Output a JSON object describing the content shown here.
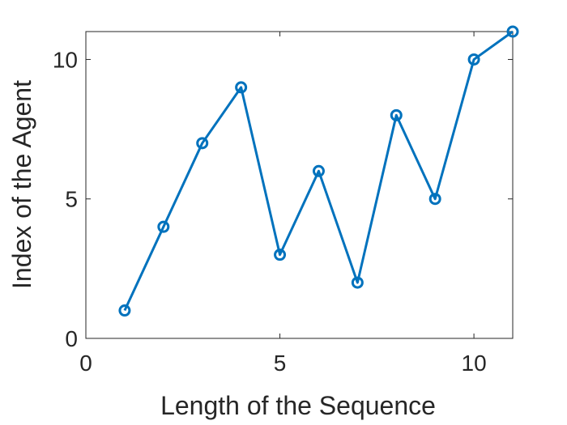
{
  "chart_data": {
    "type": "line",
    "x_label": "Length of the Sequence",
    "y_label": "Index of the Agent",
    "x": [
      1,
      2,
      3,
      4,
      5,
      6,
      7,
      8,
      9,
      10,
      11
    ],
    "values": [
      1,
      4,
      7,
      9,
      3,
      6,
      2,
      8,
      5,
      10,
      11
    ],
    "color": "#0072bd",
    "xlim": [
      0,
      11
    ],
    "xticks": [
      0,
      5,
      10
    ],
    "ylim": [
      0,
      11
    ],
    "yticks": [
      0,
      5,
      10
    ],
    "grid": false
  }
}
